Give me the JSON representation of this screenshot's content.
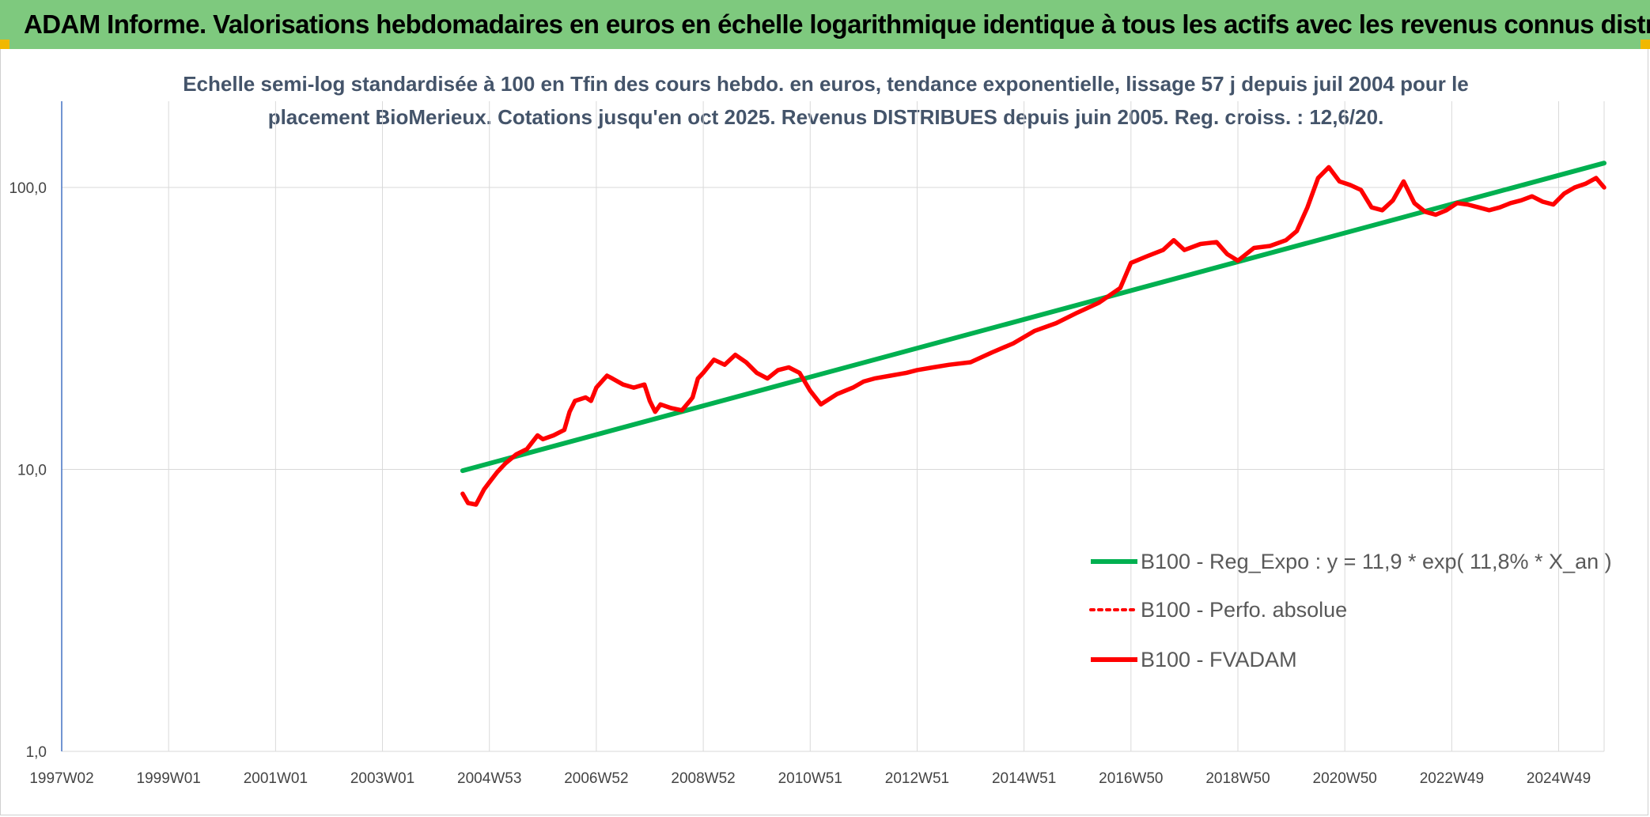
{
  "header": {
    "title": "ADAM Informe. Valorisations hebdomadaires en euros en échelle logarithmique identique à tous les actifs avec les revenus connus distribués"
  },
  "chart_data": {
    "type": "line",
    "title_lines": [
      "Echelle semi-log standardisée à 100 en Tfin des cours hebdo. en euros, tendance exponentielle, lissage 57 j depuis juil 2004 pour le",
      "placement BioMerieux. Cotations jusqu'en oct 2025. Revenus DISTRIBUES depuis juin 2005. Reg. croiss. : 12,6/20."
    ],
    "y_scale": "log",
    "ylim": [
      1,
      180
    ],
    "y_ticks": [
      {
        "value": 1,
        "label": "1,0"
      },
      {
        "value": 10,
        "label": "10,0"
      },
      {
        "value": 100,
        "label": "100,0"
      }
    ],
    "x_unit": "year",
    "xlim": [
      1997.0,
      2025.85
    ],
    "x_ticks": [
      {
        "label": "1997W02",
        "value": 1997.0
      },
      {
        "label": "1999W01",
        "value": 1999.0
      },
      {
        "label": "2001W01",
        "value": 2001.0
      },
      {
        "label": "2003W01",
        "value": 2003.0
      },
      {
        "label": "2004W53",
        "value": 2005.0
      },
      {
        "label": "2006W52",
        "value": 2007.0
      },
      {
        "label": "2008W52",
        "value": 2009.0
      },
      {
        "label": "2010W51",
        "value": 2011.0
      },
      {
        "label": "2012W51",
        "value": 2013.0
      },
      {
        "label": "2014W51",
        "value": 2015.0
      },
      {
        "label": "2016W50",
        "value": 2017.0
      },
      {
        "label": "2018W50",
        "value": 2019.0
      },
      {
        "label": "2020W50",
        "value": 2021.0
      },
      {
        "label": "2022W49",
        "value": 2023.0
      },
      {
        "label": "2024W49",
        "value": 2025.0
      }
    ],
    "grid": true,
    "legend_position": "bottom-right",
    "series": [
      {
        "name": "B100 - Reg_Expo : y = 11,9 * exp( 11,8% *  X_an )",
        "color": "#00b050",
        "style": "solid",
        "x": [
          2004.5,
          2025.85
        ],
        "y": [
          9.9,
          122
        ]
      },
      {
        "name": "B100 - Perfo. absolue",
        "color": "#ff0000",
        "style": "dotted",
        "x": [],
        "y": []
      },
      {
        "name": "B100 - FVADAM",
        "color": "#ff0000",
        "style": "solid",
        "x": [
          2004.5,
          2004.6,
          2004.75,
          2004.9,
          2005.0,
          2005.15,
          2005.3,
          2005.5,
          2005.7,
          2005.9,
          2006.0,
          2006.2,
          2006.4,
          2006.5,
          2006.6,
          2006.8,
          2006.9,
          2007.0,
          2007.1,
          2007.2,
          2007.3,
          2007.5,
          2007.7,
          2007.9,
          2008.0,
          2008.1,
          2008.2,
          2008.4,
          2008.6,
          2008.75,
          2008.8,
          2008.9,
          2009.0,
          2009.2,
          2009.4,
          2009.6,
          2009.8,
          2010.0,
          2010.2,
          2010.4,
          2010.6,
          2010.8,
          2011.0,
          2011.2,
          2011.5,
          2011.8,
          2012.0,
          2012.2,
          2012.5,
          2012.8,
          2013.0,
          2013.3,
          2013.6,
          2014.0,
          2014.4,
          2014.8,
          2015.2,
          2015.6,
          2016.0,
          2016.4,
          2016.8,
          2017.0,
          2017.3,
          2017.6,
          2017.8,
          2018.0,
          2018.3,
          2018.6,
          2018.8,
          2019.0,
          2019.3,
          2019.6,
          2019.9,
          2020.1,
          2020.3,
          2020.5,
          2020.7,
          2020.9,
          2021.1,
          2021.3,
          2021.5,
          2021.7,
          2021.9,
          2022.1,
          2022.3,
          2022.5,
          2022.7,
          2022.9,
          2023.1,
          2023.3,
          2023.5,
          2023.7,
          2023.9,
          2024.1,
          2024.3,
          2024.5,
          2024.7,
          2024.9,
          2025.1,
          2025.3,
          2025.5,
          2025.7,
          2025.85
        ],
        "y": [
          8.2,
          7.6,
          7.5,
          8.5,
          9.0,
          9.8,
          10.5,
          11.3,
          11.8,
          13.2,
          12.8,
          13.2,
          13.8,
          16.0,
          17.5,
          18.0,
          17.5,
          19.5,
          20.5,
          21.5,
          21.0,
          20.0,
          19.5,
          20.0,
          17.5,
          16.0,
          17.0,
          16.5,
          16.2,
          17.5,
          18.0,
          21.0,
          22.0,
          24.5,
          23.5,
          25.5,
          24.0,
          22.0,
          21.0,
          22.5,
          23.0,
          22.0,
          19.0,
          17.0,
          18.5,
          19.5,
          20.5,
          21.0,
          21.5,
          22.0,
          22.5,
          23.0,
          23.5,
          24.0,
          26.0,
          28.0,
          31.0,
          33.0,
          36.0,
          39.0,
          44.0,
          54.0,
          57.0,
          60.0,
          65.0,
          60.0,
          63.0,
          64.0,
          58.0,
          55.0,
          61.0,
          62.0,
          65.0,
          70.0,
          85.0,
          108.0,
          118.0,
          105.0,
          102.0,
          98.0,
          85.0,
          83.0,
          90.0,
          105.0,
          88.0,
          82.0,
          80.0,
          83.0,
          88.0,
          87.0,
          85.0,
          83.0,
          85.0,
          88.0,
          90.0,
          93.0,
          89.0,
          87.0,
          95.0,
          100.0,
          103.0,
          108.0,
          100.0
        ]
      }
    ]
  }
}
